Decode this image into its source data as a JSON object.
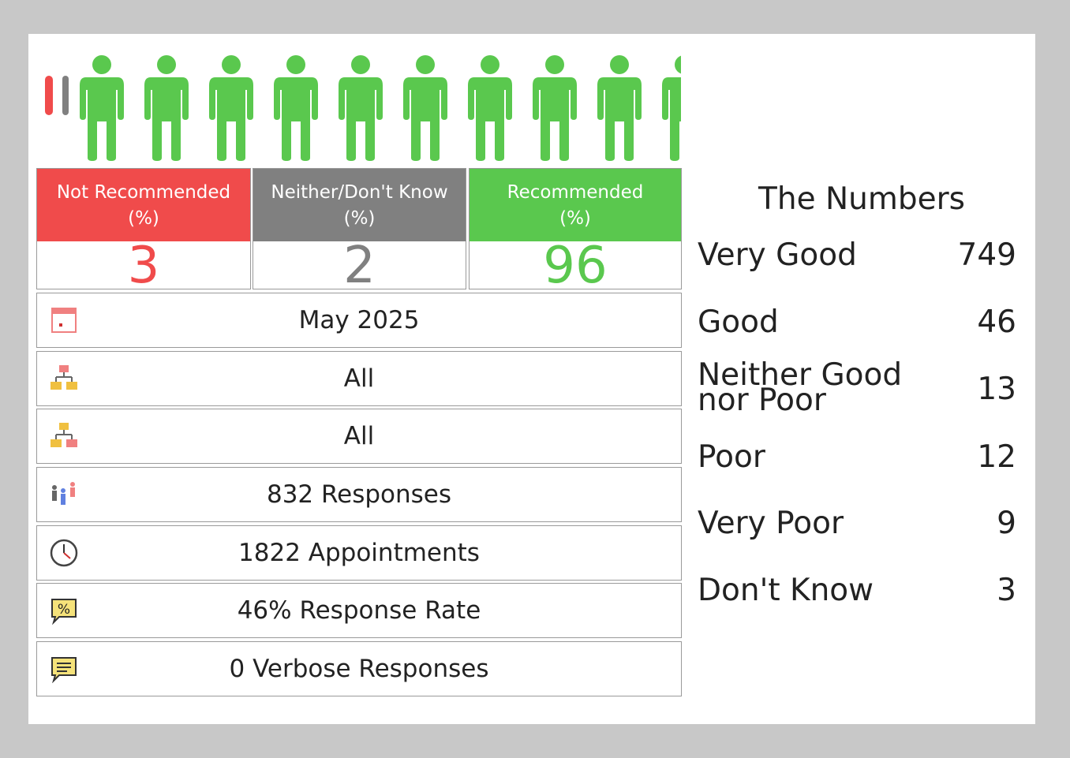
{
  "colors": {
    "not_recommended": "#f04b4b",
    "neither": "#808080",
    "recommended": "#5ac84e"
  },
  "people_icons": [
    "person-green-icon"
  ],
  "cards": [
    {
      "heading_line1": "Not Recommended",
      "heading_line2": "(%)",
      "value": "3"
    },
    {
      "heading_line1": "Neither/Don't Know",
      "heading_line2": "(%)",
      "value": "2"
    },
    {
      "heading_line1": "Recommended",
      "heading_line2": "(%)",
      "value": "96"
    }
  ],
  "rows": [
    {
      "icon": "calendar-icon",
      "label": "May 2025"
    },
    {
      "icon": "hierarchy-icon",
      "label": "All"
    },
    {
      "icon": "hierarchy-icon",
      "label": "All"
    },
    {
      "icon": "people-group-icon",
      "label": "832 Responses"
    },
    {
      "icon": "clock-icon",
      "label": "1822 Appointments"
    },
    {
      "icon": "percent-speech-icon",
      "label": "46% Response Rate"
    },
    {
      "icon": "comment-icon",
      "label": "0 Verbose Responses"
    }
  ],
  "numbers": {
    "title": "The Numbers",
    "items": [
      {
        "line1": "Very Good",
        "line2": "",
        "value": "749"
      },
      {
        "line1": "Good",
        "line2": "",
        "value": "46"
      },
      {
        "line1": "Neither Good",
        "line2": "nor Poor",
        "value": "13"
      },
      {
        "line1": "Poor",
        "line2": "",
        "value": "12"
      },
      {
        "line1": "Very Poor",
        "line2": "",
        "value": "9"
      },
      {
        "line1": "Don't Know",
        "line2": "",
        "value": "3"
      }
    ]
  }
}
